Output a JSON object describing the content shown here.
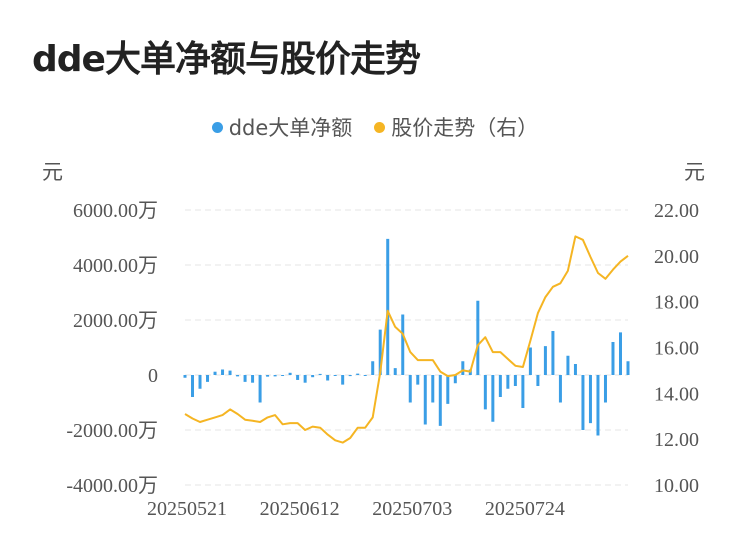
{
  "title": "dde大单净额与股价走势",
  "legend": [
    {
      "label": "dde大单净额",
      "color": "#3a9ee6"
    },
    {
      "label": "股价走势（右）",
      "color": "#f5b523"
    }
  ],
  "y_left_unit": "元",
  "y_right_unit": "元",
  "chart_data": {
    "type": "bar+line",
    "x_tick_labels": [
      "20250521",
      "20250612",
      "20250703",
      "20250724"
    ],
    "x_tick_indices": [
      0,
      15,
      30,
      45
    ],
    "y_left": {
      "ticks": [
        "6000.00万",
        "4000.00万",
        "2000.00万",
        "0",
        "-2000.00万",
        "-4000.00万"
      ],
      "range": [
        -4000,
        6000
      ],
      "unit": "万"
    },
    "y_right": {
      "ticks": [
        "22.00",
        "20.00",
        "18.00",
        "16.00",
        "14.00",
        "12.00",
        "10.00"
      ],
      "range": [
        10,
        22
      ]
    },
    "grid": true,
    "series": [
      {
        "name": "dde大单净额",
        "type": "bar",
        "color": "#3a9ee6",
        "values": [
          -100,
          -800,
          -500,
          -250,
          120,
          200,
          160,
          -50,
          -250,
          -280,
          -1000,
          -60,
          -50,
          -30,
          80,
          -180,
          -280,
          -80,
          40,
          -200,
          -30,
          -350,
          -40,
          50,
          -30,
          500,
          1650,
          4950,
          250,
          2200,
          -1000,
          -350,
          -1800,
          -1000,
          -1850,
          -1050,
          -300,
          500,
          200,
          2700,
          -1250,
          -1700,
          -800,
          -500,
          -400,
          -1200,
          1000,
          -400,
          1050,
          1600,
          -1000,
          700,
          400,
          -2000,
          -1750,
          -2200,
          -1000,
          1200,
          1550,
          500
        ],
        "unit": "万"
      },
      {
        "name": "股价走势（右）",
        "type": "line",
        "color": "#f5b523",
        "values": [
          13.1,
          12.9,
          12.75,
          12.85,
          12.95,
          13.05,
          13.3,
          13.1,
          12.85,
          12.8,
          12.75,
          12.95,
          13.05,
          12.65,
          12.7,
          12.7,
          12.4,
          12.55,
          12.5,
          12.2,
          11.95,
          11.85,
          12.05,
          12.5,
          12.5,
          12.95,
          14.9,
          17.6,
          16.9,
          16.6,
          15.8,
          15.45,
          15.45,
          15.45,
          14.95,
          14.75,
          14.8,
          15.0,
          14.95,
          16.1,
          16.45,
          15.8,
          15.8,
          15.5,
          15.2,
          15.15,
          16.3,
          17.5,
          18.2,
          18.65,
          18.8,
          19.35,
          20.85,
          20.7,
          19.95,
          19.25,
          19.0,
          19.4,
          19.75,
          20.0
        ]
      }
    ]
  }
}
